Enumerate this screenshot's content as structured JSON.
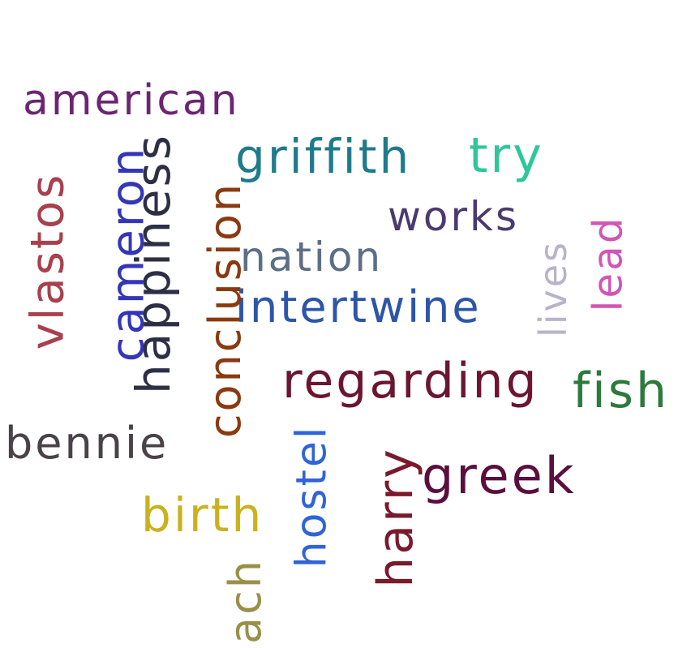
{
  "words": {
    "american": {
      "text": "american",
      "color": "#6b2573"
    },
    "griffith": {
      "text": "griffith",
      "color": "#1f7a8c"
    },
    "try": {
      "text": "try",
      "color": "#2ec79c"
    },
    "works": {
      "text": "works",
      "color": "#4b3a6e"
    },
    "nation": {
      "text": "nation",
      "color": "#5c6f86"
    },
    "intertwine": {
      "text": "intertwine",
      "color": "#2d55a8"
    },
    "regarding": {
      "text": "regarding",
      "color": "#6b1530"
    },
    "fish": {
      "text": "fish",
      "color": "#2d7a3d"
    },
    "bennie": {
      "text": "bennie",
      "color": "#4a4248"
    },
    "greek": {
      "text": "greek",
      "color": "#5a0f3e"
    },
    "birth": {
      "text": "birth",
      "color": "#c9b21e"
    },
    "vlastos": {
      "text": "vlastos",
      "color": "#a8404e"
    },
    "cameron": {
      "text": "cameron",
      "color": "#3436b8"
    },
    "happiness": {
      "text": "happiness",
      "color": "#2c2f45"
    },
    "conclusion": {
      "text": "conclusion",
      "color": "#8a3a10"
    },
    "lives": {
      "text": "lives",
      "color": "#b9b3c9"
    },
    "lead": {
      "text": "lead",
      "color": "#d256b5"
    },
    "hostel": {
      "text": "hostel",
      "color": "#2f64d8"
    },
    "harry": {
      "text": "harry",
      "color": "#7a1a2c"
    },
    "ach": {
      "text": "ach",
      "color": "#9a8f48"
    }
  }
}
